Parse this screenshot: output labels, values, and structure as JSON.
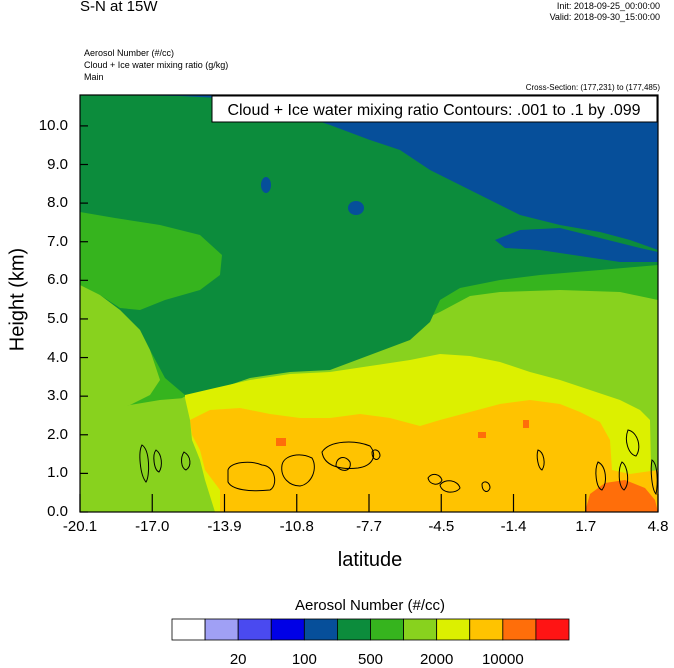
{
  "header": {
    "title": "S-N at 15W",
    "init": "Init: 2018-09-25_00:00:00",
    "valid": "Valid: 2018-09-30_15:00:00",
    "variables": [
      "Aerosol Number   (#/cc)",
      "Cloud + Ice water mixing ratio   (g/kg)",
      "Main"
    ],
    "cross_section": "Cross-Section: (177,231) to (177,485)"
  },
  "chart_data": {
    "type": "heatmap",
    "contour_label": "Cloud + Ice water mixing ratio Contours: .001 to .1 by .099",
    "xlabel": "latitude",
    "ylabel": "Height (km)",
    "x_ticks": [
      "-20.1",
      "-17.0",
      "-13.9",
      "-10.8",
      "-7.7",
      "-4.5",
      "-1.4",
      "1.7",
      "4.8"
    ],
    "y_ticks": [
      "0.0",
      "1.0",
      "2.0",
      "3.0",
      "4.0",
      "5.0",
      "6.0",
      "7.0",
      "8.0",
      "9.0",
      "10.0"
    ],
    "xlim": [
      -20.1,
      4.8
    ],
    "ylim": [
      0,
      10.8
    ],
    "colorbar": {
      "title": "Aerosol Number  (#/cc)",
      "colors": [
        "#ffffff",
        "#a0a0f5",
        "#4a4af0",
        "#0000e6",
        "#064f9a",
        "#0c8c3c",
        "#36b41e",
        "#88d21e",
        "#dcf000",
        "#ffc300",
        "#ff6e0a",
        "#ff1414"
      ],
      "tick_labels": [
        "20",
        "100",
        "500",
        "2000",
        "10000"
      ]
    }
  }
}
